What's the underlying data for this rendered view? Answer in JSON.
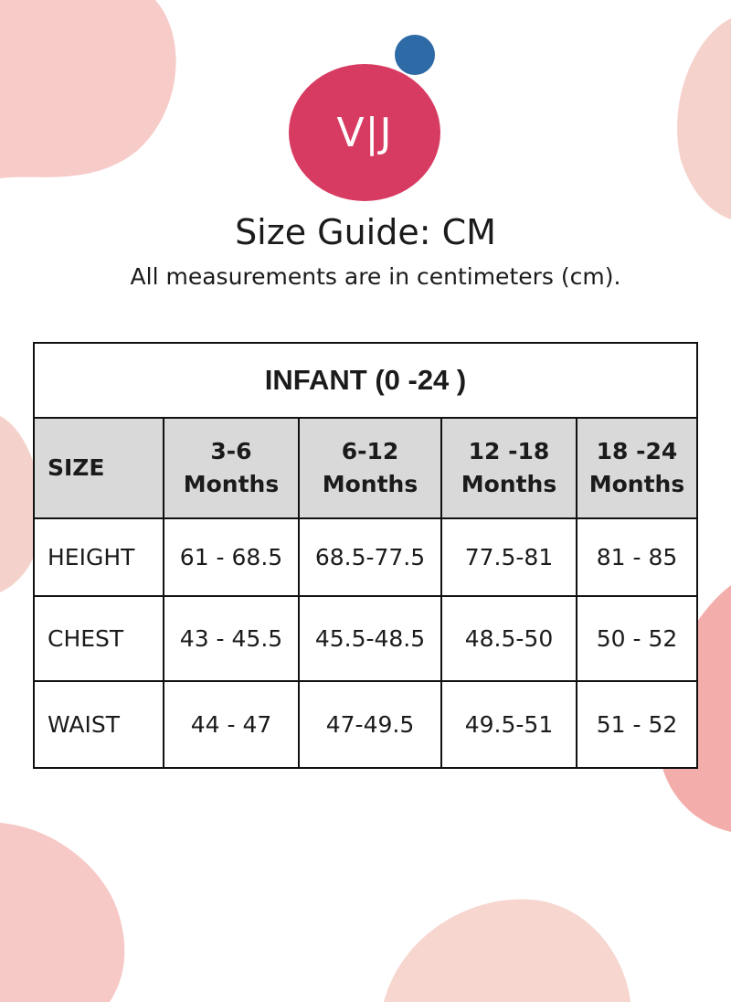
{
  "brand": {
    "logo_text": "V|J",
    "primary_color": "#d83b62",
    "dot_color": "#2d6aa6"
  },
  "header": {
    "title": "Size Guide: CM",
    "subtitle": "All measurements are in centimeters (cm)."
  },
  "table": {
    "caption": "INFANT (0 -24 )",
    "columns": [
      {
        "label": "SIZE"
      },
      {
        "line1": "3-6",
        "line2": "Months"
      },
      {
        "line1": "6-12",
        "line2": "Months"
      },
      {
        "line1": "12 -18",
        "line2": "Months"
      },
      {
        "line1": "18 -24",
        "line2": "Months"
      }
    ],
    "rows": [
      {
        "label": "HEIGHT",
        "cells": [
          "61 - 68.5",
          "68.5-77.5",
          "77.5-81",
          "81 - 85"
        ]
      },
      {
        "label": "CHEST",
        "cells": [
          "43 - 45.5",
          "45.5-48.5",
          "48.5-50",
          "50 - 52"
        ]
      },
      {
        "label": "WAIST",
        "cells": [
          "44 - 47",
          "47-49.5",
          "49.5-51",
          "51 - 52"
        ]
      }
    ]
  },
  "colors": {
    "blob": "#f6c9c6",
    "header_fill": "#d9d9d9",
    "border": "#111111"
  }
}
